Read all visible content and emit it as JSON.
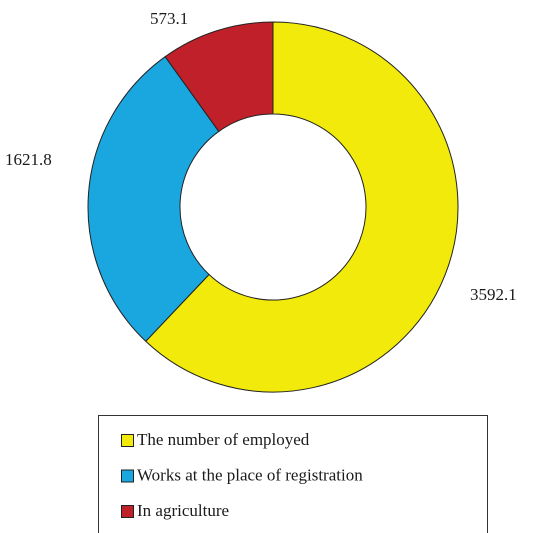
{
  "chart_data": {
    "type": "donut",
    "categories": [
      "The number of employed",
      "Works at the place of registration",
      "In agriculture"
    ],
    "values": [
      3592.1,
      1621.8,
      573.1
    ],
    "colors": [
      "#f2ea0a",
      "#1aa7e0",
      "#c0202a"
    ]
  }
}
